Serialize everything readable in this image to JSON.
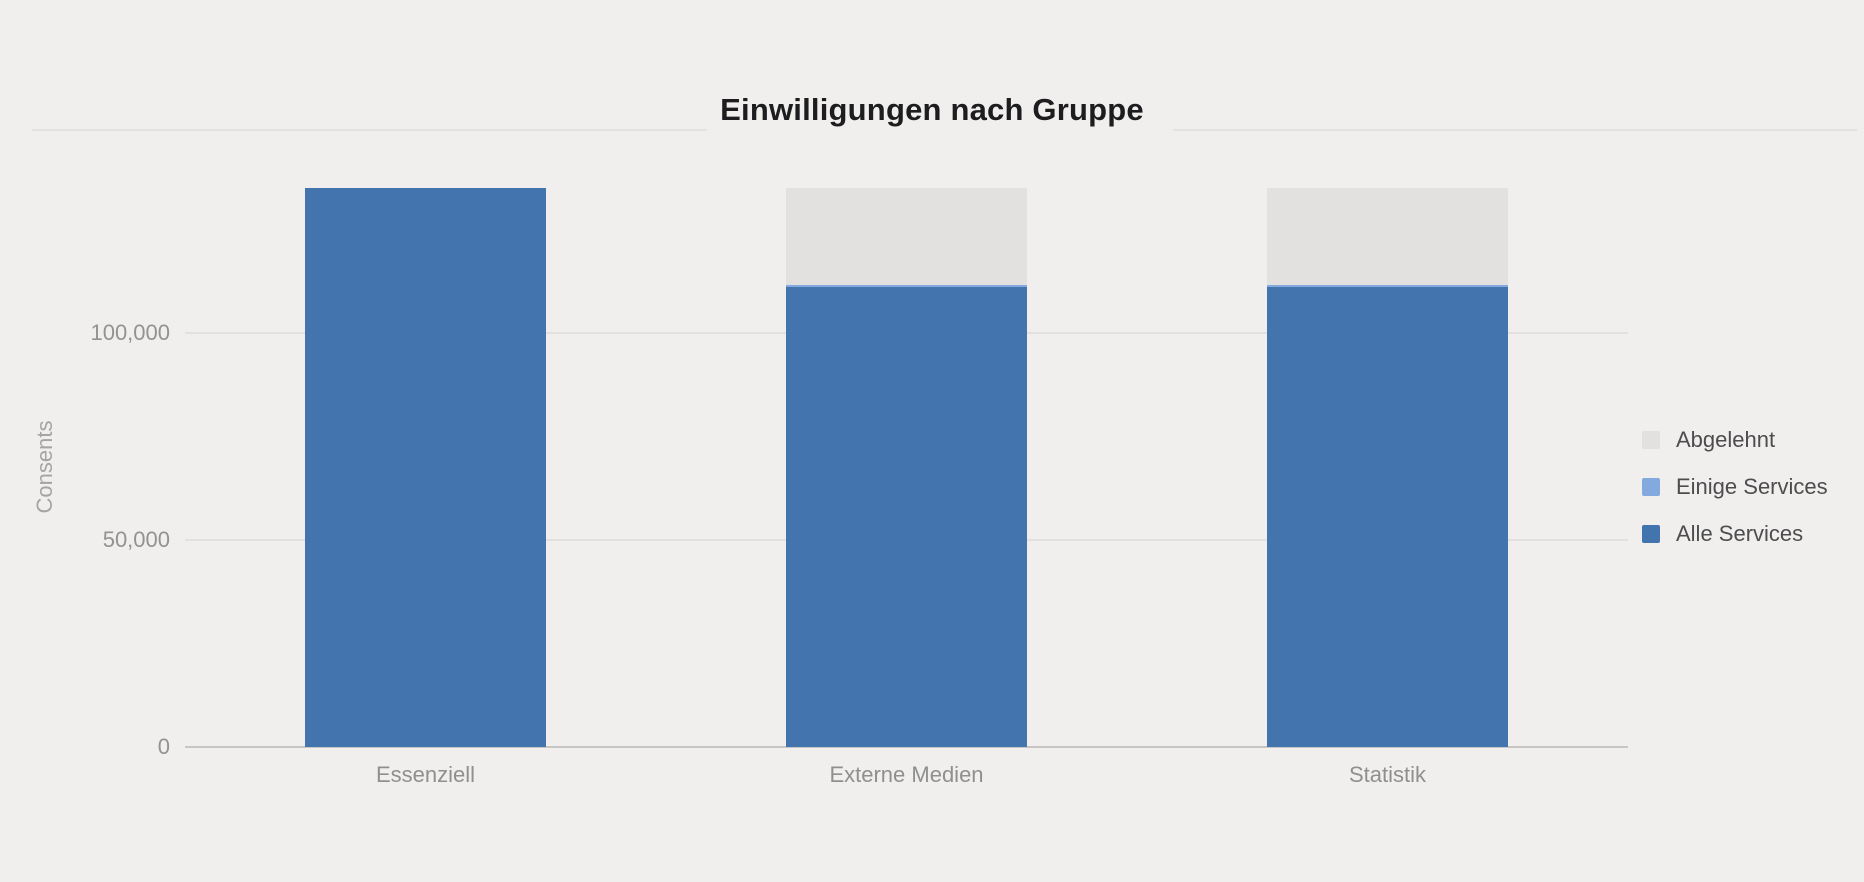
{
  "chart": {
    "title": "Einwilligungen nach Gruppe",
    "ylabel": "Consents"
  },
  "chart_data": {
    "type": "bar",
    "stacked": true,
    "title": "Einwilligungen nach Gruppe",
    "xlabel": "",
    "ylabel": "Consents",
    "categories": [
      "Essenziell",
      "Externe Medien",
      "Statistik"
    ],
    "series": [
      {
        "name": "Abgelehnt",
        "color": "#e2e1e0",
        "values": [
          0,
          23500,
          23500
        ]
      },
      {
        "name": "Einige Services",
        "color": "#82aadf",
        "values": [
          0,
          500,
          500
        ]
      },
      {
        "name": "Alle Services",
        "color": "#4374ad",
        "values": [
          135000,
          111000,
          111000
        ]
      }
    ],
    "ylim": [
      0,
      135000
    ],
    "yticks": [
      {
        "value": 0,
        "label": "0"
      },
      {
        "value": 50000,
        "label": "50,000"
      },
      {
        "value": 100000,
        "label": "100,000"
      }
    ],
    "grid": true,
    "legend_position": "right"
  }
}
